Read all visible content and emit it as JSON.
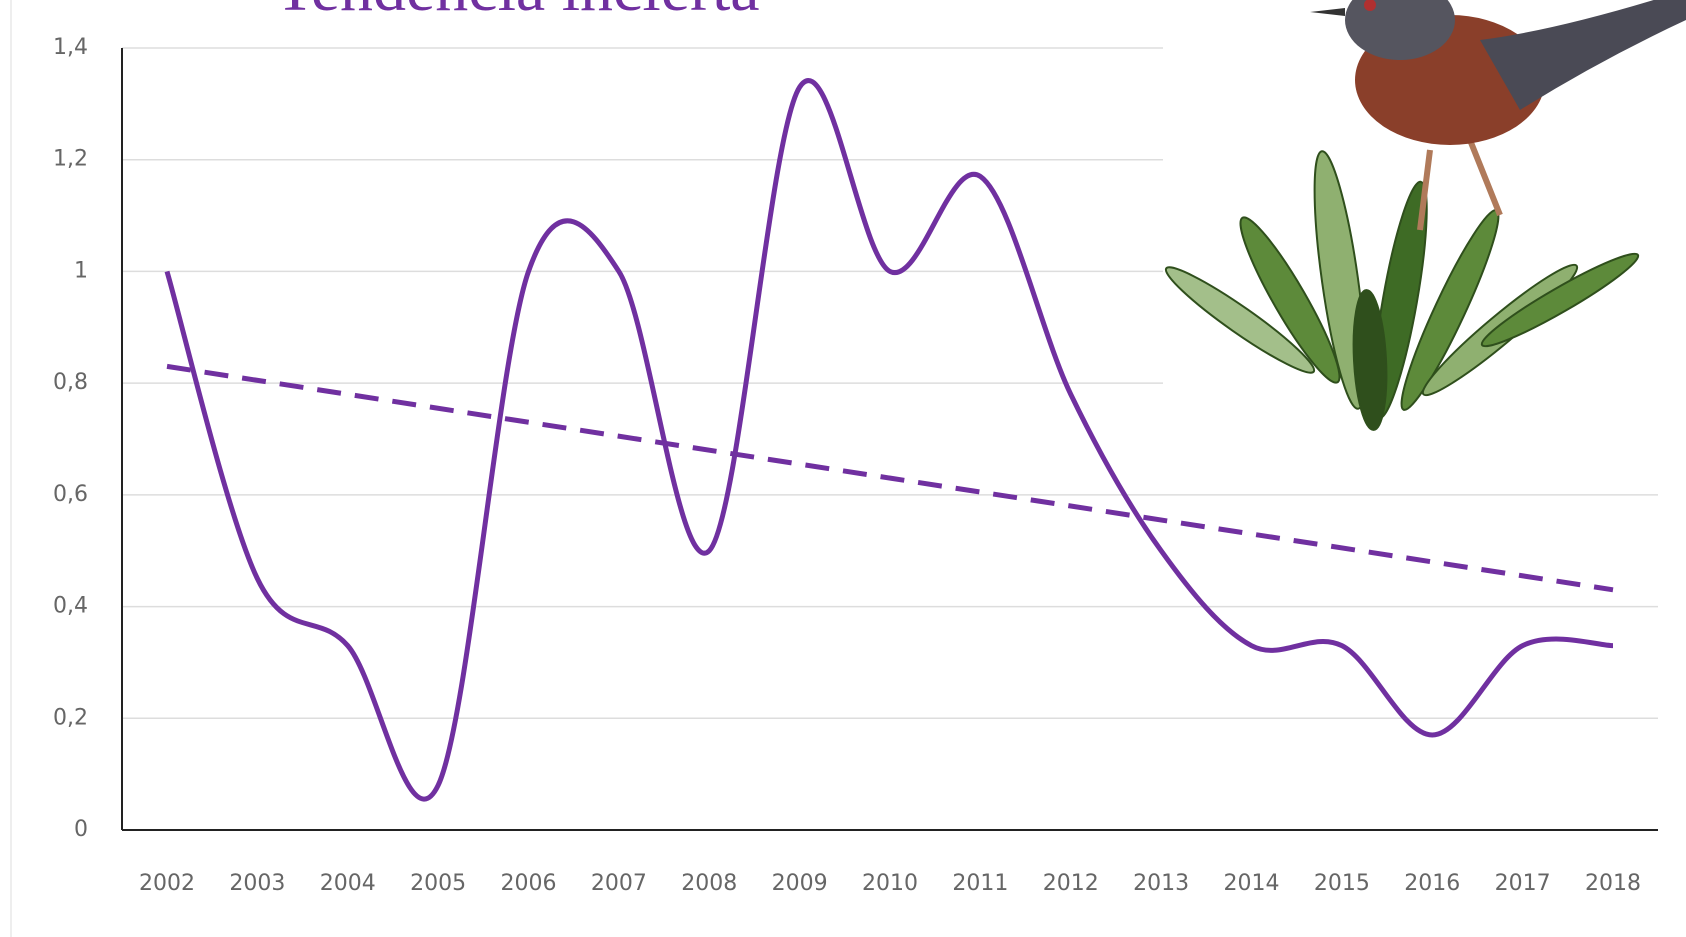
{
  "chart_data": {
    "type": "line",
    "title": "Tendencia incierta",
    "categories": [
      "2002",
      "2003",
      "2004",
      "2005",
      "2006",
      "2007",
      "2008",
      "2009",
      "2010",
      "2011",
      "2012",
      "2013",
      "2014",
      "2015",
      "2016",
      "2017",
      "2018"
    ],
    "values": [
      1.0,
      0.45,
      0.33,
      0.08,
      1.0,
      1.0,
      0.5,
      1.33,
      1.0,
      1.17,
      0.78,
      0.5,
      0.33,
      0.33,
      0.17,
      0.33,
      0.33
    ],
    "color": "#7030a0",
    "trendline": {
      "values": [
        0.83,
        0.43
      ],
      "dashed": true
    },
    "ylim": [
      0,
      1.4
    ],
    "yticks": [
      0,
      {
        "value": 0.2,
        "label": "0,2"
      },
      {
        "value": 0.4,
        "label": "0,4"
      },
      {
        "value": 0.6,
        "label": "0,6"
      },
      {
        "value": 0.8,
        "label": "0,8"
      },
      1,
      {
        "value": 1.2,
        "label": "1,2"
      },
      {
        "value": 1.4,
        "label": "1,4"
      }
    ],
    "grid": true
  }
}
